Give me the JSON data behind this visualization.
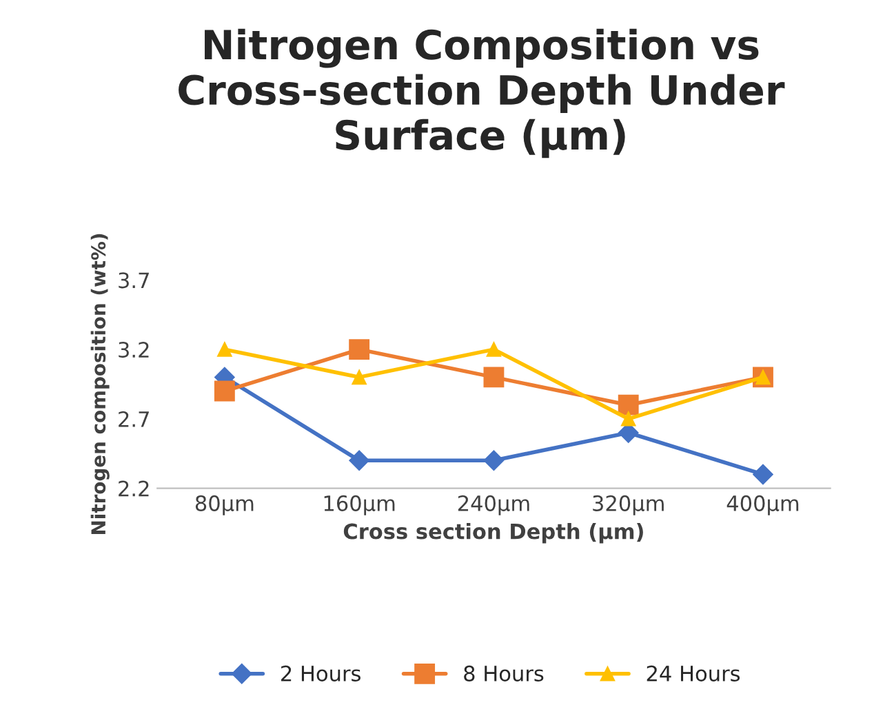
{
  "chart_data": {
    "type": "line",
    "title": "Nitrogen Composition vs Cross-section Depth Under Surface (µm)",
    "xlabel": "Cross section Depth (µm)",
    "ylabel": "Nitrogen composition (wt%)",
    "categories": [
      "80µm",
      "160µm",
      "240µm",
      "320µm",
      "400µm"
    ],
    "series": [
      {
        "name": "2 Hours",
        "color": "#4472c4",
        "marker": "diamond",
        "values": [
          3.0,
          2.4,
          2.4,
          2.6,
          2.3
        ]
      },
      {
        "name": "8 Hours",
        "color": "#ed7d31",
        "marker": "square",
        "values": [
          2.9,
          3.2,
          3.0,
          2.8,
          3.0
        ]
      },
      {
        "name": "24 Hours",
        "color": "#ffc000",
        "marker": "triangle",
        "values": [
          3.2,
          3.0,
          3.2,
          2.7,
          3.0
        ]
      }
    ],
    "ylim": [
      2.2,
      3.7
    ],
    "yticks": [
      2.2,
      2.7,
      3.2,
      3.7
    ],
    "grid": false,
    "legend": "bottom"
  }
}
